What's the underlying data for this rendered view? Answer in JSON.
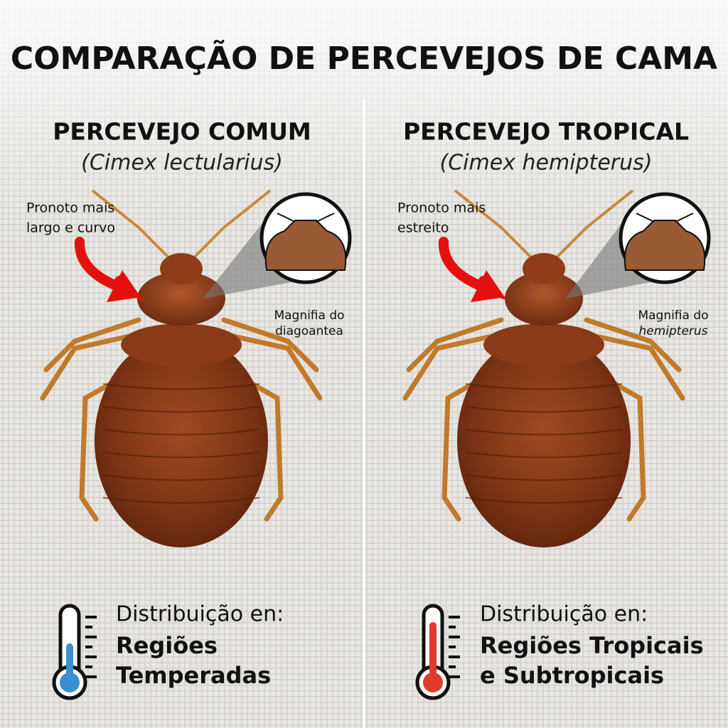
{
  "title": "COMPARAÇÃO DE PERCEVEJOS DE CAMA",
  "panels": [
    {
      "name": "PERCEVEJO COMUM",
      "scientific_name": "(Cimex lectularius)",
      "callout": [
        "Pronoto mais",
        "largo e curvo"
      ],
      "magnify_label": [
        "Magnifia do",
        "diagoantea"
      ],
      "distribution_label": "Distribuição en:",
      "distribution_value": [
        "Regiões",
        "Temperadas"
      ]
    },
    {
      "name": "PERCEVEJO TROPICAL",
      "scientific_name": "(Cimex hemipterus)",
      "callout": [
        "Pronoto mais",
        "estreito"
      ],
      "magnify_label": [
        "Magnifia do",
        "hemipterus"
      ],
      "distribution_label": "Distribuição en:",
      "distribution_value": [
        "Regiões Tropicais",
        "e Subtropicais"
      ]
    }
  ]
}
